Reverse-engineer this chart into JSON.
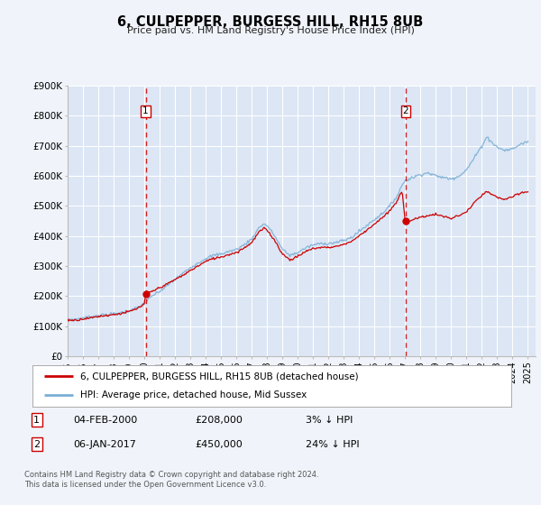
{
  "title": "6, CULPEPPER, BURGESS HILL, RH15 8UB",
  "subtitle": "Price paid vs. HM Land Registry's House Price Index (HPI)",
  "bg_color": "#f0f4fa",
  "plot_bg_color": "#dce6f5",
  "grid_color": "#ffffff",
  "sale1_date": 2000.09,
  "sale1_price": 208000,
  "sale2_date": 2017.04,
  "sale2_price": 450000,
  "xmin": 1995.0,
  "xmax": 2025.5,
  "ymin": 0,
  "ymax": 900000,
  "yticks": [
    0,
    100000,
    200000,
    300000,
    400000,
    500000,
    600000,
    700000,
    800000,
    900000
  ],
  "ytick_labels": [
    "£0",
    "£100K",
    "£200K",
    "£300K",
    "£400K",
    "£500K",
    "£600K",
    "£700K",
    "£800K",
    "£900K"
  ],
  "legend_line1": "6, CULPEPPER, BURGESS HILL, RH15 8UB (detached house)",
  "legend_line2": "HPI: Average price, detached house, Mid Sussex",
  "table_row1": [
    "1",
    "04-FEB-2000",
    "£208,000",
    "3% ↓ HPI"
  ],
  "table_row2": [
    "2",
    "06-JAN-2017",
    "£450,000",
    "24% ↓ HPI"
  ],
  "footer1": "Contains HM Land Registry data © Crown copyright and database right 2024.",
  "footer2": "This data is licensed under the Open Government Licence v3.0.",
  "red_color": "#cc0000",
  "blue_color": "#7bafd4",
  "dashed_color": "#cc0000",
  "hpi_anchors": [
    [
      1995.0,
      123000
    ],
    [
      1995.5,
      122000
    ],
    [
      1996.0,
      127000
    ],
    [
      1996.5,
      130000
    ],
    [
      1997.0,
      135000
    ],
    [
      1997.5,
      138000
    ],
    [
      1998.0,
      140000
    ],
    [
      1998.5,
      145000
    ],
    [
      1999.0,
      150000
    ],
    [
      1999.5,
      160000
    ],
    [
      2000.0,
      175000
    ],
    [
      2000.5,
      200000
    ],
    [
      2001.0,
      215000
    ],
    [
      2001.5,
      235000
    ],
    [
      2002.0,
      255000
    ],
    [
      2002.5,
      275000
    ],
    [
      2003.0,
      295000
    ],
    [
      2003.5,
      310000
    ],
    [
      2004.0,
      325000
    ],
    [
      2004.5,
      335000
    ],
    [
      2005.0,
      340000
    ],
    [
      2005.5,
      348000
    ],
    [
      2006.0,
      355000
    ],
    [
      2006.5,
      370000
    ],
    [
      2007.0,
      390000
    ],
    [
      2007.5,
      430000
    ],
    [
      2007.8,
      440000
    ],
    [
      2008.0,
      435000
    ],
    [
      2008.5,
      400000
    ],
    [
      2009.0,
      355000
    ],
    [
      2009.5,
      335000
    ],
    [
      2010.0,
      345000
    ],
    [
      2010.5,
      360000
    ],
    [
      2011.0,
      370000
    ],
    [
      2011.5,
      375000
    ],
    [
      2012.0,
      375000
    ],
    [
      2012.5,
      378000
    ],
    [
      2013.0,
      385000
    ],
    [
      2013.5,
      395000
    ],
    [
      2014.0,
      415000
    ],
    [
      2014.5,
      435000
    ],
    [
      2015.0,
      455000
    ],
    [
      2015.5,
      475000
    ],
    [
      2016.0,
      500000
    ],
    [
      2016.5,
      535000
    ],
    [
      2016.8,
      570000
    ],
    [
      2017.0,
      585000
    ],
    [
      2017.5,
      595000
    ],
    [
      2018.0,
      605000
    ],
    [
      2018.5,
      610000
    ],
    [
      2019.0,
      600000
    ],
    [
      2019.5,
      595000
    ],
    [
      2020.0,
      590000
    ],
    [
      2020.5,
      600000
    ],
    [
      2021.0,
      620000
    ],
    [
      2021.5,
      660000
    ],
    [
      2022.0,
      700000
    ],
    [
      2022.3,
      730000
    ],
    [
      2022.5,
      720000
    ],
    [
      2023.0,
      695000
    ],
    [
      2023.5,
      685000
    ],
    [
      2024.0,
      690000
    ],
    [
      2024.5,
      705000
    ],
    [
      2025.0,
      715000
    ]
  ],
  "prop_anchors": [
    [
      1995.0,
      120000
    ],
    [
      1995.5,
      119000
    ],
    [
      1996.0,
      124000
    ],
    [
      1996.5,
      127000
    ],
    [
      1997.0,
      132000
    ],
    [
      1997.5,
      135000
    ],
    [
      1998.0,
      138000
    ],
    [
      1998.5,
      142000
    ],
    [
      1999.0,
      148000
    ],
    [
      1999.5,
      157000
    ],
    [
      2000.0,
      172000
    ],
    [
      2000.1,
      208000
    ],
    [
      2000.5,
      215000
    ],
    [
      2001.0,
      228000
    ],
    [
      2001.5,
      240000
    ],
    [
      2002.0,
      255000
    ],
    [
      2002.5,
      268000
    ],
    [
      2003.0,
      285000
    ],
    [
      2003.5,
      300000
    ],
    [
      2004.0,
      315000
    ],
    [
      2004.5,
      325000
    ],
    [
      2005.0,
      330000
    ],
    [
      2005.5,
      338000
    ],
    [
      2006.0,
      345000
    ],
    [
      2006.5,
      360000
    ],
    [
      2007.0,
      378000
    ],
    [
      2007.5,
      415000
    ],
    [
      2007.8,
      425000
    ],
    [
      2008.0,
      420000
    ],
    [
      2008.5,
      385000
    ],
    [
      2009.0,
      340000
    ],
    [
      2009.5,
      320000
    ],
    [
      2010.0,
      332000
    ],
    [
      2010.5,
      348000
    ],
    [
      2011.0,
      358000
    ],
    [
      2011.5,
      362000
    ],
    [
      2012.0,
      362000
    ],
    [
      2012.5,
      365000
    ],
    [
      2013.0,
      372000
    ],
    [
      2013.5,
      382000
    ],
    [
      2014.0,
      400000
    ],
    [
      2014.5,
      420000
    ],
    [
      2015.0,
      440000
    ],
    [
      2015.5,
      460000
    ],
    [
      2016.0,
      483000
    ],
    [
      2016.5,
      518000
    ],
    [
      2016.8,
      550000
    ],
    [
      2017.0,
      450000
    ],
    [
      2017.2,
      448000
    ],
    [
      2017.5,
      455000
    ],
    [
      2018.0,
      462000
    ],
    [
      2018.5,
      468000
    ],
    [
      2019.0,
      472000
    ],
    [
      2019.5,
      465000
    ],
    [
      2020.0,
      458000
    ],
    [
      2020.5,
      468000
    ],
    [
      2021.0,
      480000
    ],
    [
      2021.5,
      510000
    ],
    [
      2022.0,
      535000
    ],
    [
      2022.3,
      548000
    ],
    [
      2022.5,
      542000
    ],
    [
      2023.0,
      528000
    ],
    [
      2023.5,
      522000
    ],
    [
      2024.0,
      530000
    ],
    [
      2024.5,
      542000
    ],
    [
      2025.0,
      548000
    ]
  ]
}
